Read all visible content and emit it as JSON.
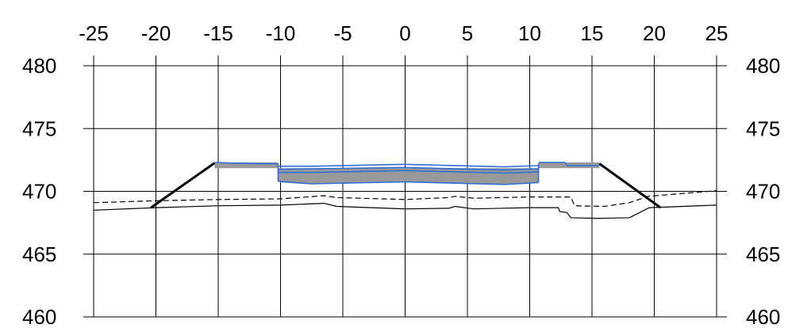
{
  "chart_data": {
    "type": "line",
    "title": "",
    "xlabel": "",
    "ylabel": "",
    "xlim": [
      -25,
      25
    ],
    "ylim": [
      460,
      480
    ],
    "x_ticks": [
      -25,
      -20,
      -15,
      -10,
      -5,
      0,
      5,
      10,
      15,
      20,
      25
    ],
    "y_ticks": [
      480,
      475,
      470,
      465,
      460
    ],
    "x_tick_labels": [
      "-25",
      "-20",
      "-15",
      "-10",
      "-5",
      "0",
      "5",
      "10",
      "15",
      "20",
      "25"
    ],
    "y_tick_labels": [
      "480",
      "475",
      "470",
      "465",
      "460"
    ],
    "grid": true,
    "colors": {
      "grid": "#000000",
      "ground": "#000000",
      "slope": "#000000",
      "fill": "#999999",
      "outline": "#2f6fd6"
    },
    "series": [
      {
        "style": "solid-thin",
        "points": [
          [
            -25,
            468.5
          ],
          [
            -20,
            468.7
          ],
          [
            -15,
            468.85
          ],
          [
            -10,
            468.9
          ],
          [
            -6.5,
            469.05
          ],
          [
            -5.5,
            468.8
          ],
          [
            0,
            468.6
          ],
          [
            3.5,
            468.65
          ],
          [
            4,
            468.8
          ],
          [
            5.5,
            468.6
          ],
          [
            10,
            468.7
          ],
          [
            12.3,
            468.7
          ],
          [
            12.4,
            468.4
          ],
          [
            13,
            468.3
          ],
          [
            13.3,
            467.9
          ],
          [
            15.5,
            467.85
          ],
          [
            18,
            467.9
          ],
          [
            19.6,
            468.7
          ],
          [
            25,
            468.9
          ]
        ]
      },
      {
        "style": "dashed",
        "points": [
          [
            -25,
            469.1
          ],
          [
            -20,
            469.25
          ],
          [
            -15,
            469.35
          ],
          [
            -10,
            469.4
          ],
          [
            -6.5,
            469.65
          ],
          [
            -5.5,
            469.5
          ],
          [
            0,
            469.35
          ],
          [
            3.5,
            469.5
          ],
          [
            4,
            469.6
          ],
          [
            5.5,
            469.45
          ],
          [
            10,
            469.55
          ],
          [
            13.3,
            469.55
          ],
          [
            13.6,
            468.85
          ],
          [
            16,
            468.8
          ],
          [
            18,
            469.1
          ],
          [
            19.5,
            469.6
          ],
          [
            25,
            470.05
          ]
        ]
      },
      {
        "style": "slope-left",
        "points": [
          [
            -20.4,
            468.7
          ],
          [
            -15.3,
            472.25
          ]
        ]
      },
      {
        "style": "slope-right",
        "points": [
          [
            15.6,
            472.2
          ],
          [
            20.5,
            468.7
          ]
        ]
      }
    ],
    "surfaces": [
      {
        "style": "fill",
        "polygon": [
          [
            -15.3,
            472.3
          ],
          [
            -10.2,
            472.3
          ],
          [
            -10.2,
            471.9
          ],
          [
            -10.2,
            470.8
          ],
          [
            -10,
            470.7
          ],
          [
            -7.5,
            470.55
          ],
          [
            0,
            470.75
          ],
          [
            8,
            470.55
          ],
          [
            10.5,
            470.7
          ],
          [
            10.7,
            470.75
          ],
          [
            10.7,
            472.05
          ],
          [
            10.7,
            472.3
          ],
          [
            15.6,
            472.3
          ],
          [
            15.6,
            471.85
          ],
          [
            -15.3,
            471.85
          ]
        ]
      },
      {
        "style": "outline",
        "points": [
          [
            -15.3,
            472.3
          ],
          [
            -12.2,
            472.2
          ],
          [
            -10.2,
            472.2
          ]
        ]
      },
      {
        "style": "outline",
        "points": [
          [
            -10.2,
            472.0
          ],
          [
            -7.5,
            472.0
          ],
          [
            0,
            472.15
          ],
          [
            8,
            471.95
          ],
          [
            10.7,
            472.05
          ]
        ]
      },
      {
        "style": "outline",
        "points": [
          [
            -10.2,
            471.75
          ],
          [
            -7.5,
            471.8
          ],
          [
            0,
            471.9
          ],
          [
            8,
            471.7
          ],
          [
            10.7,
            471.8
          ]
        ]
      },
      {
        "style": "outline",
        "points": [
          [
            -10.2,
            471.5
          ],
          [
            -7.5,
            471.5
          ],
          [
            0,
            471.65
          ],
          [
            8,
            471.45
          ],
          [
            10.7,
            471.55
          ]
        ]
      },
      {
        "style": "outline",
        "points": [
          [
            -10.2,
            470.8
          ],
          [
            -7.5,
            470.6
          ],
          [
            0,
            470.75
          ],
          [
            8,
            470.55
          ],
          [
            10.7,
            470.7
          ]
        ]
      },
      {
        "style": "outline",
        "points": [
          [
            -10.2,
            472.2
          ],
          [
            -10.2,
            470.8
          ]
        ]
      },
      {
        "style": "outline",
        "points": [
          [
            10.7,
            472.2
          ],
          [
            10.7,
            470.7
          ]
        ]
      },
      {
        "style": "outline",
        "points": [
          [
            10.7,
            472.3
          ],
          [
            12.8,
            472.3
          ],
          [
            13.0,
            472.05
          ],
          [
            15.6,
            472.05
          ]
        ]
      }
    ]
  }
}
